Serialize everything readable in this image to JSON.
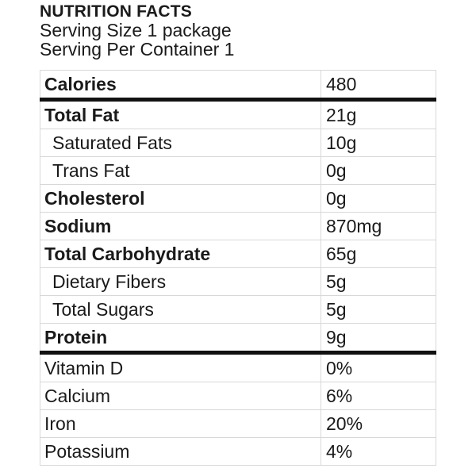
{
  "header": {
    "title": "NUTRITION FACTS",
    "serving_size": "Serving Size 1 package",
    "servings_per_container": "Serving Per Container 1"
  },
  "rows": [
    {
      "name": "Calories",
      "value": "480"
    },
    {
      "name": "Total Fat",
      "value": "21g"
    },
    {
      "name": "Saturated Fats",
      "value": "10g"
    },
    {
      "name": "Trans Fat",
      "value": "0g"
    },
    {
      "name": "Cholesterol",
      "value": "0g"
    },
    {
      "name": "Sodium",
      "value": "870mg"
    },
    {
      "name": "Total Carbohydrate",
      "value": "65g"
    },
    {
      "name": "Dietary Fibers",
      "value": "5g"
    },
    {
      "name": "Total Sugars",
      "value": "5g"
    },
    {
      "name": "Protein",
      "value": "9g"
    },
    {
      "name": "Vitamin D",
      "value": "0%"
    },
    {
      "name": "Calcium",
      "value": "6%"
    },
    {
      "name": "Iron",
      "value": "20%"
    },
    {
      "name": "Potassium",
      "value": "4%"
    }
  ]
}
